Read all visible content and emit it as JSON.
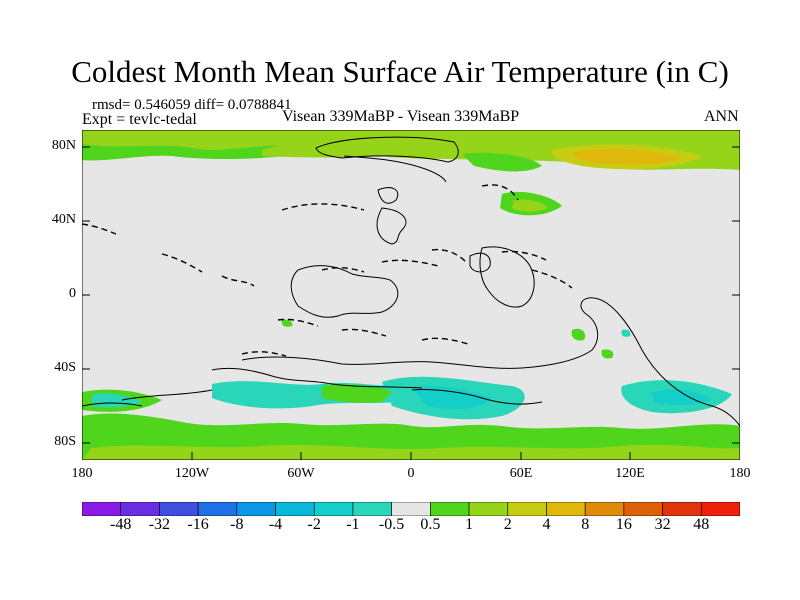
{
  "title": "Coldest Month Mean Surface Air Temperature (in C)",
  "stats": "rmsd= 0.546059 diff= 0.0788841",
  "expt": "Expt = tevlc-tedal",
  "experiments": "Visean 339MaBP - Visean 339MaBP",
  "season": "ANN",
  "y_ticks": [
    "80N",
    "40N",
    "0",
    "40S",
    "80S"
  ],
  "x_ticks": [
    "180",
    "120W",
    "60W",
    "0",
    "60E",
    "120E",
    "180"
  ],
  "colorbar": {
    "labels": [
      "-48",
      "-32",
      "-16",
      "-8",
      "-4",
      "-2",
      "-1",
      "-0.5",
      "0.5",
      "1",
      "2",
      "4",
      "8",
      "16",
      "32",
      "48"
    ],
    "colors": [
      "#8a1ae6",
      "#6a2ee0",
      "#3e4fe0",
      "#1f6fe6",
      "#0a97e8",
      "#0ab8dc",
      "#14cfc9",
      "#2ad6b9",
      "#e6e6e6",
      "#4fd61c",
      "#96d41a",
      "#c6cc12",
      "#e0b80c",
      "#e08a0a",
      "#e0600a",
      "#e0340a",
      "#f01e0a"
    ]
  },
  "colors": {
    "background": "#e6e6e6",
    "pos1": "#4fd61c",
    "pos2": "#96d41a",
    "pos3": "#c6cc12",
    "pos4": "#e0b80c",
    "neg1": "#2ad6b9",
    "neg2": "#14cfc9"
  }
}
